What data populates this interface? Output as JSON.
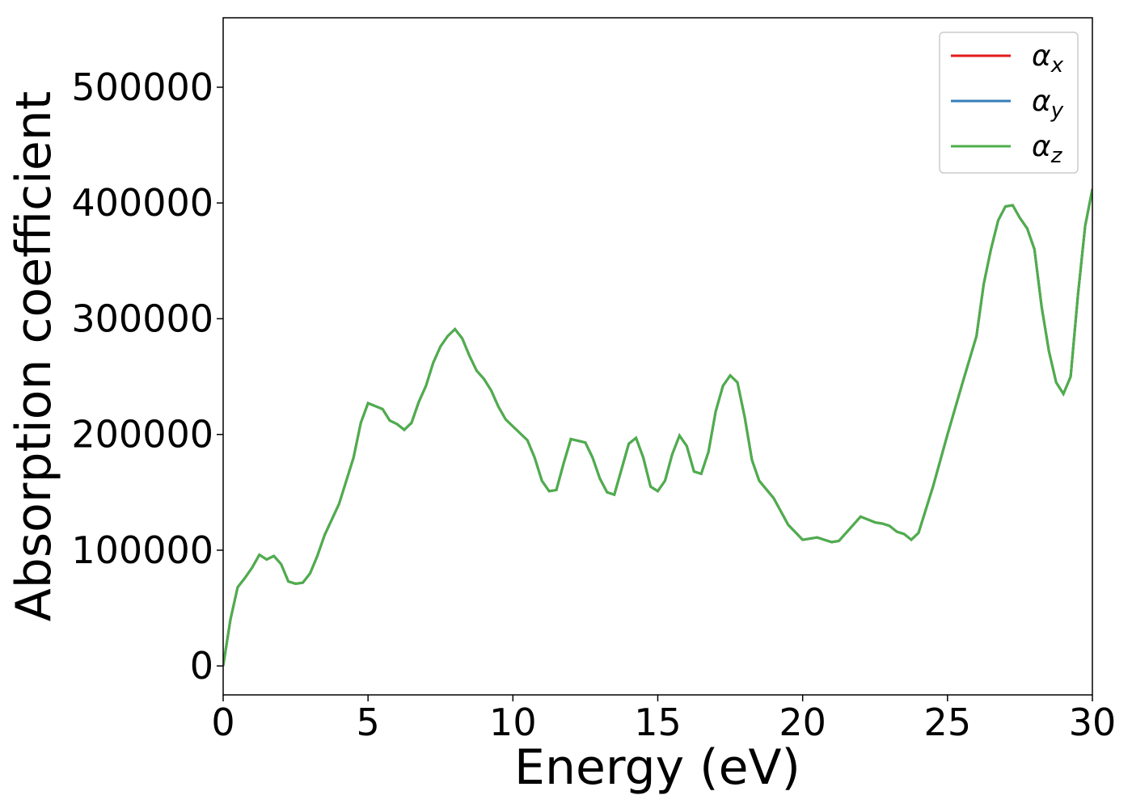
{
  "chart_data": {
    "type": "line",
    "xlabel": "Energy (eV)",
    "ylabel": "Absorption coefficient",
    "x": [
      0,
      0.25,
      0.5,
      0.75,
      1,
      1.25,
      1.5,
      1.75,
      2,
      2.25,
      2.5,
      2.75,
      3,
      3.25,
      3.5,
      4,
      4.5,
      4.75,
      5,
      5.5,
      5.75,
      6,
      6.25,
      6.5,
      6.75,
      7,
      7.25,
      7.5,
      7.75,
      8,
      8.25,
      8.5,
      8.75,
      9,
      9.25,
      9.5,
      9.75,
      10,
      10.5,
      10.75,
      11,
      11.25,
      11.5,
      11.75,
      12,
      12.5,
      12.75,
      13,
      13.25,
      13.5,
      13.75,
      14,
      14.25,
      14.5,
      14.75,
      15,
      15.25,
      15.5,
      15.75,
      16,
      16.25,
      16.5,
      16.75,
      17,
      17.25,
      17.5,
      17.75,
      18,
      18.25,
      18.5,
      19,
      19.5,
      20,
      20.5,
      21,
      21.25,
      21.5,
      22,
      22.5,
      22.75,
      23,
      23.25,
      23.5,
      23.75,
      24,
      24.5,
      25,
      25.5,
      26,
      26.25,
      26.5,
      26.75,
      27,
      27.25,
      27.5,
      27.75,
      28,
      28.25,
      28.5,
      28.75,
      29,
      29.25,
      29.5,
      29.75,
      30
    ],
    "series": [
      {
        "name": "αx",
        "color": "#e41a1c",
        "values": [
          0,
          40000,
          68000,
          76000,
          85000,
          96000,
          92000,
          95000,
          88000,
          73000,
          71000,
          72000,
          80000,
          95000,
          113000,
          140000,
          180000,
          210000,
          227000,
          222000,
          212000,
          209000,
          204000,
          210000,
          228000,
          242000,
          262000,
          276000,
          285000,
          291000,
          283000,
          268000,
          255000,
          248000,
          238000,
          224000,
          213000,
          207000,
          195000,
          180000,
          160000,
          151000,
          152000,
          175000,
          196000,
          193000,
          180000,
          162000,
          150000,
          148000,
          170000,
          192000,
          197000,
          180000,
          155000,
          151000,
          160000,
          183000,
          199000,
          190000,
          168000,
          166000,
          185000,
          220000,
          242000,
          251000,
          245000,
          215000,
          178000,
          160000,
          145000,
          122000,
          109000,
          111000,
          107000,
          108000,
          115000,
          129000,
          124000,
          123000,
          121000,
          116000,
          114000,
          109000,
          115000,
          155000,
          200000,
          243000,
          285000,
          330000,
          360000,
          385000,
          397000,
          398000,
          387000,
          378000,
          360000,
          310000,
          272000,
          245000,
          235000,
          250000,
          320000,
          380000,
          412000
        ]
      },
      {
        "name": "αy",
        "color": "#377eb8",
        "values": [
          0,
          40000,
          68000,
          76000,
          85000,
          96000,
          92000,
          95000,
          88000,
          73000,
          71000,
          72000,
          80000,
          95000,
          113000,
          140000,
          180000,
          210000,
          227000,
          222000,
          212000,
          209000,
          204000,
          210000,
          228000,
          242000,
          262000,
          276000,
          285000,
          291000,
          283000,
          268000,
          255000,
          248000,
          238000,
          224000,
          213000,
          207000,
          195000,
          180000,
          160000,
          151000,
          152000,
          175000,
          196000,
          193000,
          180000,
          162000,
          150000,
          148000,
          170000,
          192000,
          197000,
          180000,
          155000,
          151000,
          160000,
          183000,
          199000,
          190000,
          168000,
          166000,
          185000,
          220000,
          242000,
          251000,
          245000,
          215000,
          178000,
          160000,
          145000,
          122000,
          109000,
          111000,
          107000,
          108000,
          115000,
          129000,
          124000,
          123000,
          121000,
          116000,
          114000,
          109000,
          115000,
          155000,
          200000,
          243000,
          285000,
          330000,
          360000,
          385000,
          397000,
          398000,
          387000,
          378000,
          360000,
          310000,
          272000,
          245000,
          235000,
          250000,
          320000,
          380000,
          412000
        ]
      },
      {
        "name": "αz",
        "color": "#4daf4a",
        "values": [
          0,
          40000,
          68000,
          76000,
          85000,
          96000,
          92000,
          95000,
          88000,
          73000,
          71000,
          72000,
          80000,
          95000,
          113000,
          140000,
          180000,
          210000,
          227000,
          222000,
          212000,
          209000,
          204000,
          210000,
          228000,
          242000,
          262000,
          276000,
          285000,
          291000,
          283000,
          268000,
          255000,
          248000,
          238000,
          224000,
          213000,
          207000,
          195000,
          180000,
          160000,
          151000,
          152000,
          175000,
          196000,
          193000,
          180000,
          162000,
          150000,
          148000,
          170000,
          192000,
          197000,
          180000,
          155000,
          151000,
          160000,
          183000,
          199000,
          190000,
          168000,
          166000,
          185000,
          220000,
          242000,
          251000,
          245000,
          215000,
          178000,
          160000,
          145000,
          122000,
          109000,
          111000,
          107000,
          108000,
          115000,
          129000,
          124000,
          123000,
          121000,
          116000,
          114000,
          109000,
          115000,
          155000,
          200000,
          243000,
          285000,
          330000,
          360000,
          385000,
          397000,
          398000,
          387000,
          378000,
          360000,
          310000,
          272000,
          245000,
          235000,
          250000,
          320000,
          380000,
          412000
        ]
      }
    ],
    "xlim": [
      0,
      30
    ],
    "xticks": [
      0,
      5,
      10,
      15,
      20,
      25,
      30
    ],
    "ylim": [
      -25000,
      560000
    ],
    "yticks": [
      0,
      100000,
      200000,
      300000,
      400000,
      500000
    ],
    "legend": "upper right"
  }
}
